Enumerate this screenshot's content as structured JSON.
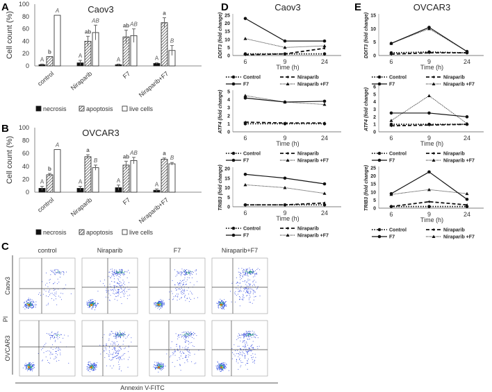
{
  "panels": {
    "A": "A",
    "B": "B",
    "C": "C",
    "D": "D",
    "E": "E"
  },
  "colors": {
    "necrosis": "#111111",
    "axis": "#555555",
    "flow_bg": "#ffffff"
  },
  "chart_data": [
    {
      "id": "A",
      "type": "bar",
      "title": "Caov3",
      "ylabel": "Cell count (%)",
      "ylim": [
        0,
        100
      ],
      "yticks": [
        0,
        20,
        40,
        60,
        80,
        100
      ],
      "categories": [
        "control",
        "Niraparib",
        "F7",
        "Niraparib+F7"
      ],
      "legend": [
        "necrosis",
        "apoptosis",
        "live cells"
      ],
      "legend_position": "bottom",
      "series": [
        {
          "name": "necrosis",
          "values": [
            2,
            5,
            2,
            4
          ],
          "errors": [
            1,
            4,
            1,
            1
          ],
          "letters": [
            "A",
            "A",
            "A",
            "A"
          ]
        },
        {
          "name": "apoptosis",
          "values": [
            15,
            40,
            47,
            70
          ],
          "errors": [
            0,
            8,
            11,
            8
          ],
          "letters": [
            "b",
            "ab",
            "ab",
            "a"
          ]
        },
        {
          "name": "live cells",
          "values": [
            82,
            54,
            49,
            25
          ],
          "errors": [
            0,
            12,
            11,
            8
          ],
          "letters": [
            "A",
            "AB",
            "AB",
            "B"
          ]
        }
      ]
    },
    {
      "id": "B",
      "type": "bar",
      "title": "OVCAR3",
      "ylabel": "Cell count (%)",
      "ylim": [
        0,
        100
      ],
      "yticks": [
        0,
        20,
        40,
        60,
        80,
        100
      ],
      "categories": [
        "control",
        "Niraparib",
        "F7",
        "Niraparib+F7"
      ],
      "legend": [
        "necrosis",
        "apoptosis",
        "live cells"
      ],
      "legend_position": "bottom",
      "series": [
        {
          "name": "necrosis",
          "values": [
            6,
            6,
            7,
            3
          ],
          "errors": [
            3,
            3,
            4,
            2
          ],
          "letters": [
            "A",
            "A",
            "A",
            "A"
          ]
        },
        {
          "name": "apoptosis",
          "values": [
            27,
            55,
            42,
            51
          ],
          "errors": [
            2,
            3,
            6,
            2
          ],
          "letters": [
            "b",
            "a",
            "ab",
            "a"
          ]
        },
        {
          "name": "live cells",
          "values": [
            66,
            38,
            49,
            44
          ],
          "errors": [
            0,
            4,
            5,
            2
          ],
          "letters": [
            "A",
            "B",
            "AB",
            "B"
          ]
        }
      ]
    },
    {
      "id": "D1",
      "panel": "D",
      "type": "line",
      "title": "Caov3",
      "ylabel": "DDIT3 (fold change)",
      "xlabel": "Time (h)",
      "x": [
        "6",
        "9",
        "24"
      ],
      "ylim": [
        0,
        25
      ],
      "yticks": [
        0,
        5,
        10,
        15,
        20,
        25
      ],
      "legend_position": "bottom",
      "series": [
        {
          "name": "Control",
          "values": [
            1,
            1,
            1
          ]
        },
        {
          "name": "Niraparib",
          "values": [
            0.5,
            1,
            4.5
          ]
        },
        {
          "name": "F7",
          "values": [
            23,
            9,
            9
          ]
        },
        {
          "name": "Niraparib +F7",
          "values": [
            10.5,
            5,
            6
          ]
        }
      ]
    },
    {
      "id": "D2",
      "panel": "D",
      "type": "line",
      "ylabel": "ATF4 (fold change)",
      "xlabel": "Time (h)",
      "x": [
        "6",
        "9",
        "24"
      ],
      "ylim": [
        0,
        5
      ],
      "yticks": [
        0,
        1,
        2,
        3,
        4,
        5
      ],
      "legend_position": "bottom",
      "series": [
        {
          "name": "Control",
          "values": [
            1,
            1,
            1
          ]
        },
        {
          "name": "Niraparib",
          "values": [
            1.2,
            1.1,
            1.1
          ]
        },
        {
          "name": "F7",
          "values": [
            4.2,
            3.7,
            3.8
          ]
        },
        {
          "name": "Niraparib +F7",
          "values": [
            4.5,
            3.7,
            3.4
          ]
        }
      ]
    },
    {
      "id": "D3",
      "panel": "D",
      "type": "line",
      "ylabel": "TRIB3 (fold change)",
      "xlabel": "Time (h)",
      "x": [
        "6",
        "9",
        "24"
      ],
      "ylim": [
        0,
        20
      ],
      "yticks": [
        0,
        5,
        10,
        15,
        20
      ],
      "legend_position": "bottom",
      "series": [
        {
          "name": "Control",
          "values": [
            1,
            1,
            1
          ]
        },
        {
          "name": "Niraparib",
          "values": [
            1,
            1,
            2
          ]
        },
        {
          "name": "F7",
          "values": [
            17,
            15,
            12
          ]
        },
        {
          "name": "Niraparib +F7",
          "values": [
            11.5,
            10,
            7
          ]
        }
      ]
    },
    {
      "id": "E1",
      "panel": "E",
      "type": "line",
      "title": "OVCAR3",
      "ylabel": "DDIT3 (fold change)",
      "xlabel": "Time (h)",
      "x": [
        "6",
        "9",
        "24"
      ],
      "ylim": [
        0,
        15
      ],
      "yticks": [
        0,
        5,
        10,
        15
      ],
      "legend_position": "bottom",
      "series": [
        {
          "name": "Control",
          "values": [
            1,
            1.3,
            1
          ]
        },
        {
          "name": "Niraparib",
          "values": [
            0.5,
            1,
            1
          ]
        },
        {
          "name": "F7",
          "values": [
            4.5,
            10.5,
            1.5
          ]
        },
        {
          "name": "Niraparib +F7",
          "values": [
            4.5,
            10,
            1.5
          ]
        }
      ]
    },
    {
      "id": "E2",
      "panel": "E",
      "type": "line",
      "ylabel": "ATF4 (fold change)",
      "xlabel": "Time (h)",
      "x": [
        "6",
        "9",
        "24"
      ],
      "ylim": [
        0,
        6
      ],
      "yticks": [
        0,
        1,
        2,
        3,
        4,
        5,
        6
      ],
      "legend_position": "bottom",
      "series": [
        {
          "name": "Control",
          "values": [
            1,
            1,
            1
          ]
        },
        {
          "name": "Niraparib",
          "values": [
            0.8,
            0.9,
            1
          ]
        },
        {
          "name": "F7",
          "values": [
            2.5,
            2.5,
            2
          ]
        },
        {
          "name": "Niraparib +F7",
          "values": [
            1.5,
            4.8,
            1.1
          ]
        }
      ]
    },
    {
      "id": "E3",
      "panel": "E",
      "type": "line",
      "ylabel": "TRIB3 (fold change)",
      "xlabel": "Time (h)",
      "x": [
        "6",
        "9",
        "24"
      ],
      "ylim": [
        0,
        25
      ],
      "yticks": [
        0,
        5,
        10,
        15,
        20,
        25
      ],
      "legend_position": "bottom",
      "series": [
        {
          "name": "Control",
          "values": [
            1,
            1,
            1
          ]
        },
        {
          "name": "Niraparib",
          "values": [
            1,
            4,
            2
          ]
        },
        {
          "name": "F7",
          "values": [
            9,
            22.5,
            5.5
          ]
        },
        {
          "name": "Niraparib +F7",
          "values": [
            8.5,
            11.5,
            9
          ]
        }
      ]
    }
  ],
  "flow": {
    "columns": [
      "control",
      "Niraparib",
      "F7",
      "Niraparib+F7"
    ],
    "rows": [
      "Caov3",
      "OVCAR3"
    ],
    "xlabel": "Annexin V-FITC",
    "ylabel": "PI"
  }
}
